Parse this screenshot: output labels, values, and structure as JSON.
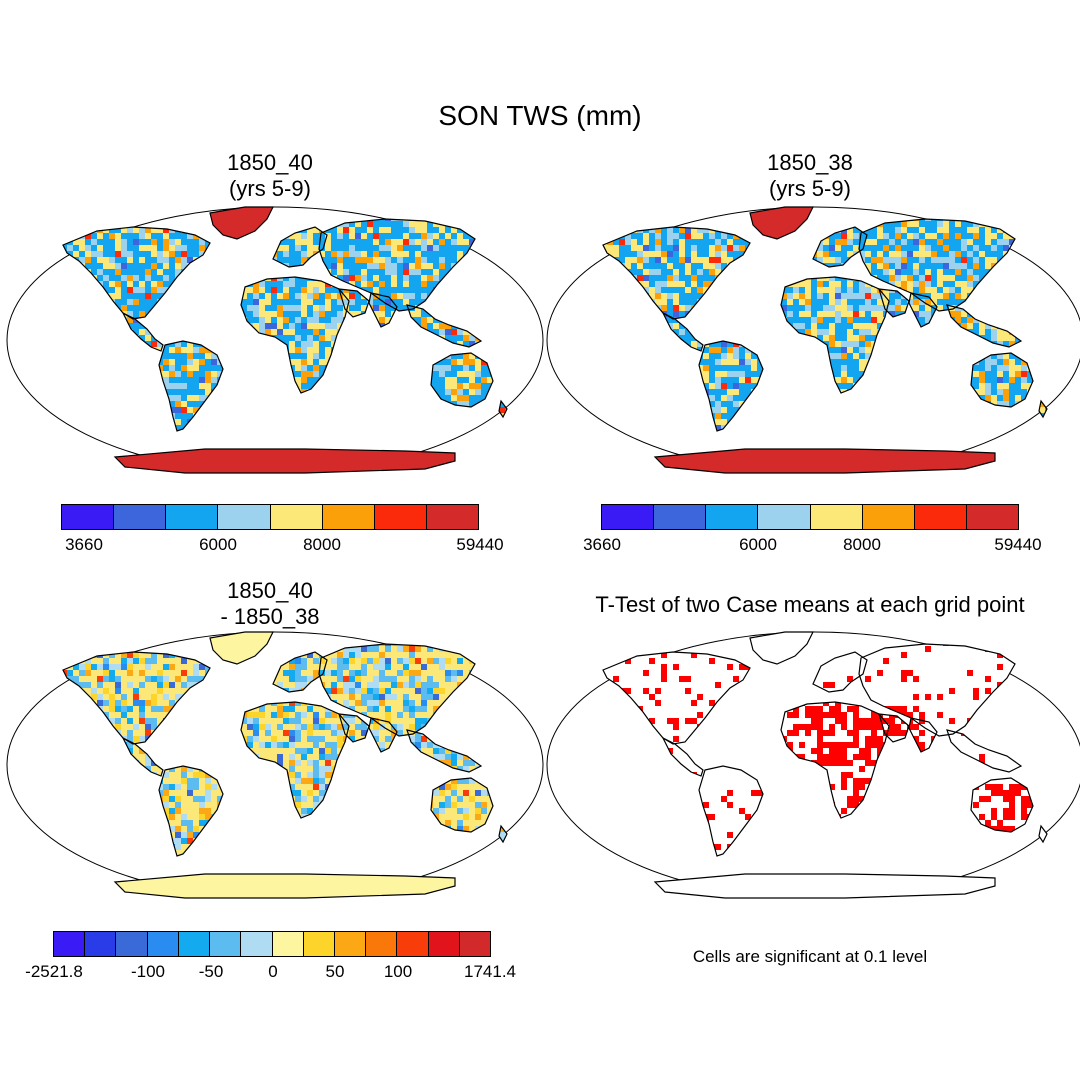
{
  "title": "SON TWS (mm)",
  "panels": [
    {
      "title": "1850_40\n(yrs 5-9)"
    },
    {
      "title": "1850_38\n(yrs 5-9)"
    },
    {
      "title": "1850_40\n- 1850_38"
    },
    {
      "title": "T-Test of two Case means at each grid point"
    }
  ],
  "colorbar_top": {
    "colors": [
      "#3a1bf5",
      "#3e66dc",
      "#14a5f0",
      "#9cd2ee",
      "#fbe878",
      "#fca00a",
      "#fb2a0a",
      "#d52a2a"
    ],
    "tick_labels": [
      "3660",
      "6000",
      "8000",
      "59440"
    ]
  },
  "colorbar_diff": {
    "colors": [
      "#3a1bf5",
      "#2a3be8",
      "#3a6ad8",
      "#2a8bf0",
      "#14aaf0",
      "#5cbcef",
      "#b0dcf3",
      "#fdf5a0",
      "#fdd52a",
      "#fca814",
      "#fa780a",
      "#f83c0a",
      "#e0141a",
      "#d22a2a"
    ],
    "tick_labels": [
      "-2521.8",
      "-100",
      "-50",
      "0",
      "50",
      "100",
      "1741.4"
    ]
  },
  "significance_note": "Cells are significant at 0.1 level",
  "colors": {
    "antarctica_abs": "#d52a2a",
    "land_mid": "#14a5f0",
    "land_warm": "#fbe878",
    "land_light": "#9cd2ee",
    "antarctica_diff": "#fdf5a0",
    "significance": "#ff0000"
  }
}
